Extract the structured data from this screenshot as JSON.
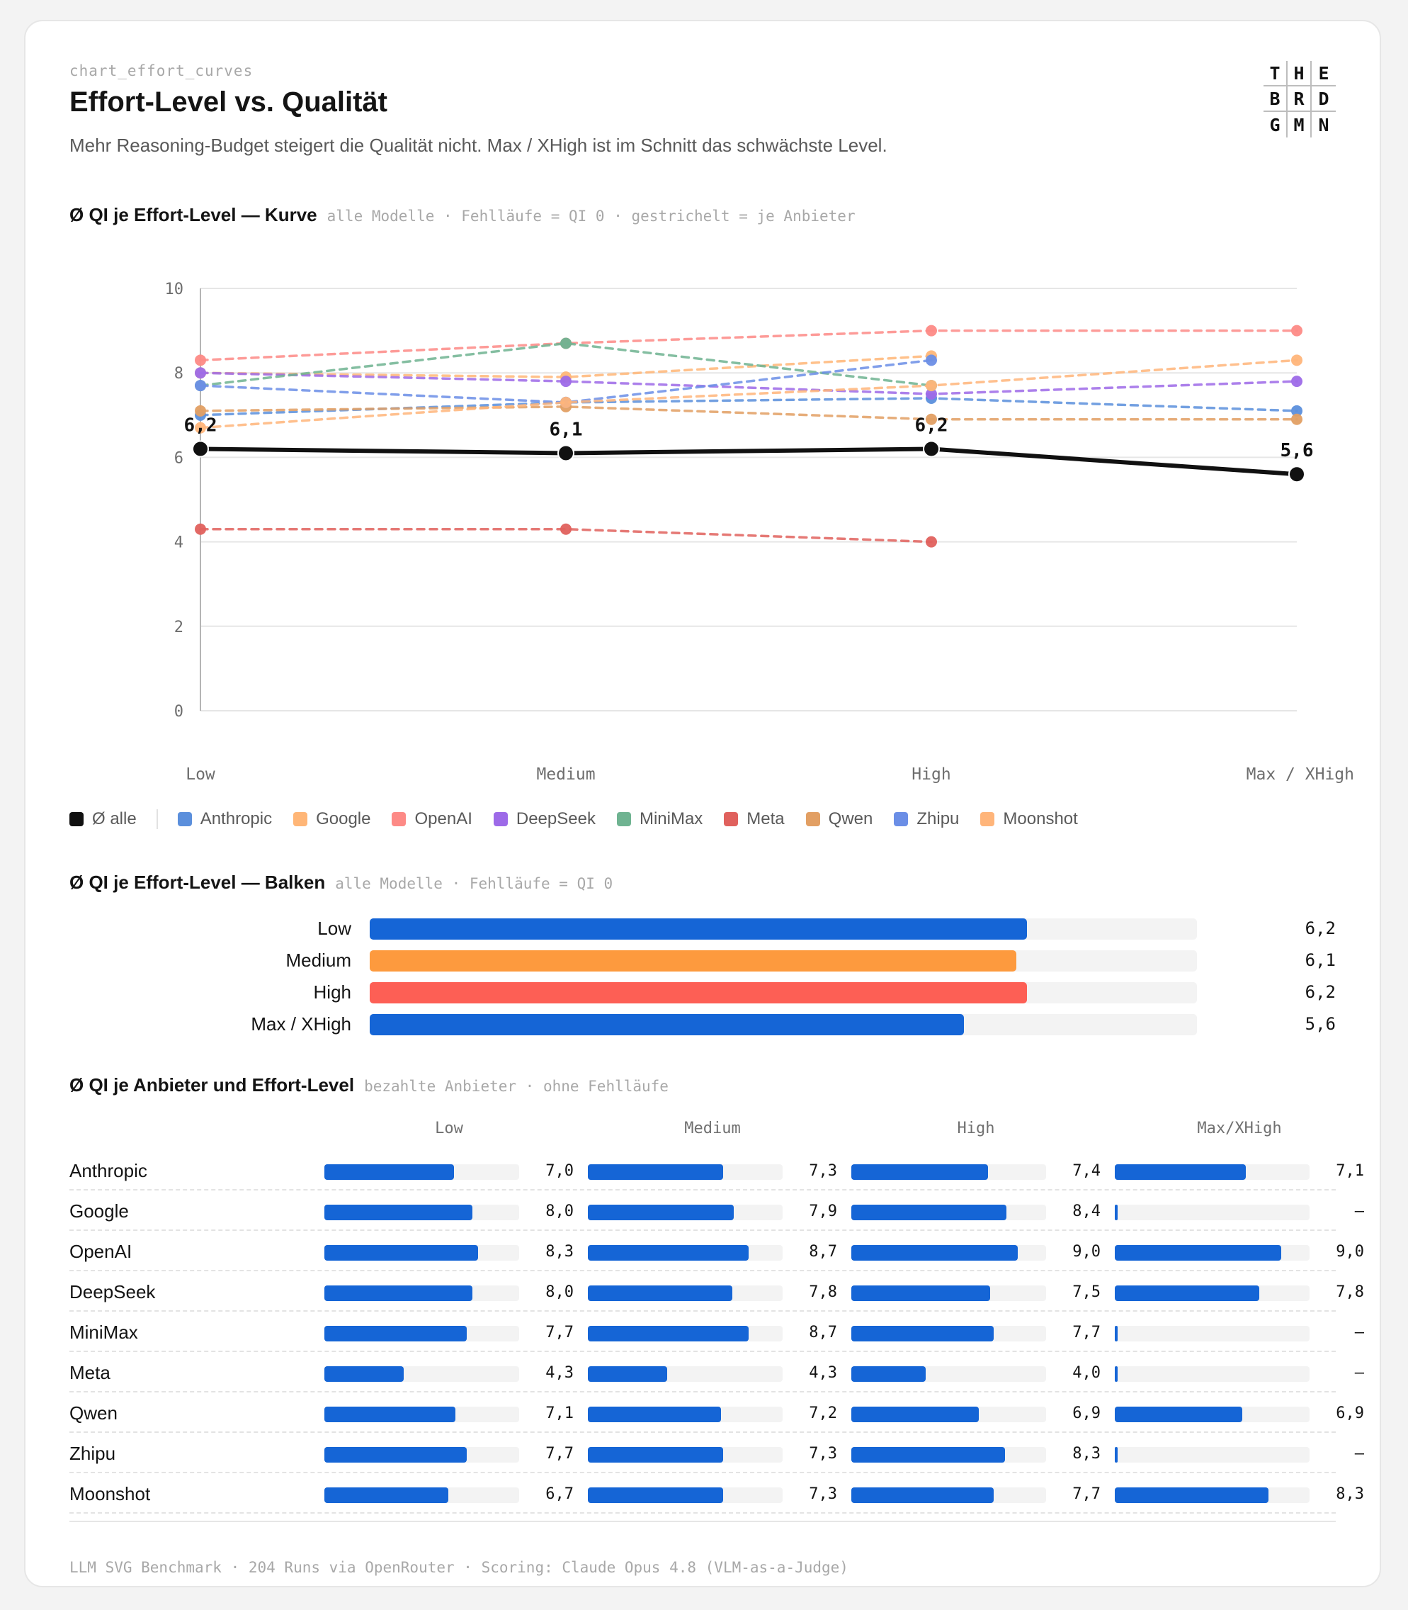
{
  "file_name": "chart_effort_curves",
  "title": "Effort-Level vs. Qualität",
  "subtitle": "Mehr Reasoning-Budget steigert die Qualität nicht. Max / XHigh ist im Schnitt das schwächste Level.",
  "logo": [
    "T",
    "H",
    "E",
    "B",
    "R",
    "D",
    "G",
    "M",
    "N"
  ],
  "colors": {
    "avg": "#111111",
    "bar_blue": "#1565d6",
    "bar_orange": "#fd9a3e",
    "bar_red": "#fd5f55",
    "track": "#f3f3f3",
    "grid": "#e6e6e6"
  },
  "sections": {
    "curve": {
      "title": "Ø QI je Effort-Level — Kurve",
      "note": "alle Modelle · Fehlläufe = QI 0 · gestrichelt = je Anbieter"
    },
    "bars": {
      "title": "Ø QI je Effort-Level — Balken",
      "note": "alle Modelle · Fehlläufe = QI 0"
    },
    "table": {
      "title": "Ø QI je Anbieter und Effort-Level",
      "note": "bezahlte Anbieter · ohne Fehlläufe"
    }
  },
  "chart_data": [
    {
      "type": "line",
      "categories": [
        "Low",
        "Medium",
        "High",
        "Max / XHigh"
      ],
      "ylim": [
        0,
        10
      ],
      "yticks": [
        0,
        2,
        4,
        6,
        8,
        10
      ],
      "grid": true,
      "legend_position": "bottom",
      "average": {
        "name": "Ø alle",
        "color": "#111111",
        "values": [
          6.2,
          6.1,
          6.2,
          5.6
        ],
        "labels": [
          "6,2",
          "6,1",
          "6,2",
          "5,6"
        ]
      },
      "series": [
        {
          "name": "Anthropic",
          "color": "#5b8fdc",
          "values": [
            7.0,
            7.3,
            7.4,
            7.1
          ]
        },
        {
          "name": "Google",
          "color": "#ffb677",
          "values": [
            8.0,
            7.9,
            8.4,
            null
          ]
        },
        {
          "name": "OpenAI",
          "color": "#fd8a86",
          "values": [
            8.3,
            8.7,
            9.0,
            9.0
          ]
        },
        {
          "name": "DeepSeek",
          "color": "#9d6ae8",
          "values": [
            8.0,
            7.8,
            7.5,
            7.8
          ]
        },
        {
          "name": "MiniMax",
          "color": "#6fb391",
          "values": [
            7.7,
            8.7,
            7.7,
            null
          ]
        },
        {
          "name": "Meta",
          "color": "#e0615d",
          "values": [
            4.3,
            4.3,
            4.0,
            null
          ]
        },
        {
          "name": "Qwen",
          "color": "#e29f63",
          "values": [
            7.1,
            7.2,
            6.9,
            6.9
          ]
        },
        {
          "name": "Zhipu",
          "color": "#6b8ee6",
          "values": [
            7.7,
            7.3,
            8.3,
            null
          ]
        },
        {
          "name": "Moonshot",
          "color": "#ffb57a",
          "values": [
            6.7,
            7.3,
            7.7,
            8.3
          ]
        }
      ]
    },
    {
      "type": "bar",
      "orientation": "horizontal",
      "categories": [
        "Low",
        "Medium",
        "High",
        "Max / XHigh"
      ],
      "values": [
        6.2,
        6.1,
        6.2,
        5.6
      ],
      "labels": [
        "6,2",
        "6,1",
        "6,2",
        "5,6"
      ],
      "colors": [
        "#1565d6",
        "#fd9a3e",
        "#fd5f55",
        "#1565d6"
      ],
      "xlim": [
        0,
        10
      ]
    },
    {
      "type": "table",
      "columns": [
        "Low",
        "Medium",
        "High",
        "Max/XHigh"
      ],
      "xlim": [
        0,
        10
      ],
      "rows": [
        {
          "name": "Anthropic",
          "values": [
            7.0,
            7.3,
            7.4,
            7.1
          ],
          "labels": [
            "7,0",
            "7,3",
            "7,4",
            "7,1"
          ]
        },
        {
          "name": "Google",
          "values": [
            8.0,
            7.9,
            8.4,
            null
          ],
          "labels": [
            "8,0",
            "7,9",
            "8,4",
            "–"
          ]
        },
        {
          "name": "OpenAI",
          "values": [
            8.3,
            8.7,
            9.0,
            9.0
          ],
          "labels": [
            "8,3",
            "8,7",
            "9,0",
            "9,0"
          ]
        },
        {
          "name": "DeepSeek",
          "values": [
            8.0,
            7.8,
            7.5,
            7.8
          ],
          "labels": [
            "8,0",
            "7,8",
            "7,5",
            "7,8"
          ]
        },
        {
          "name": "MiniMax",
          "values": [
            7.7,
            8.7,
            7.7,
            null
          ],
          "labels": [
            "7,7",
            "8,7",
            "7,7",
            "–"
          ]
        },
        {
          "name": "Meta",
          "values": [
            4.3,
            4.3,
            4.0,
            null
          ],
          "labels": [
            "4,3",
            "4,3",
            "4,0",
            "–"
          ]
        },
        {
          "name": "Qwen",
          "values": [
            7.1,
            7.2,
            6.9,
            6.9
          ],
          "labels": [
            "7,1",
            "7,2",
            "6,9",
            "6,9"
          ]
        },
        {
          "name": "Zhipu",
          "values": [
            7.7,
            7.3,
            8.3,
            null
          ],
          "labels": [
            "7,7",
            "7,3",
            "8,3",
            "–"
          ]
        },
        {
          "name": "Moonshot",
          "values": [
            6.7,
            7.3,
            7.7,
            8.3
          ],
          "labels": [
            "6,7",
            "7,3",
            "7,7",
            "8,3"
          ]
        }
      ]
    }
  ],
  "footer": "LLM SVG Benchmark · 204 Runs via OpenRouter · Scoring: Claude Opus 4.8 (VLM-as-a-Judge)"
}
